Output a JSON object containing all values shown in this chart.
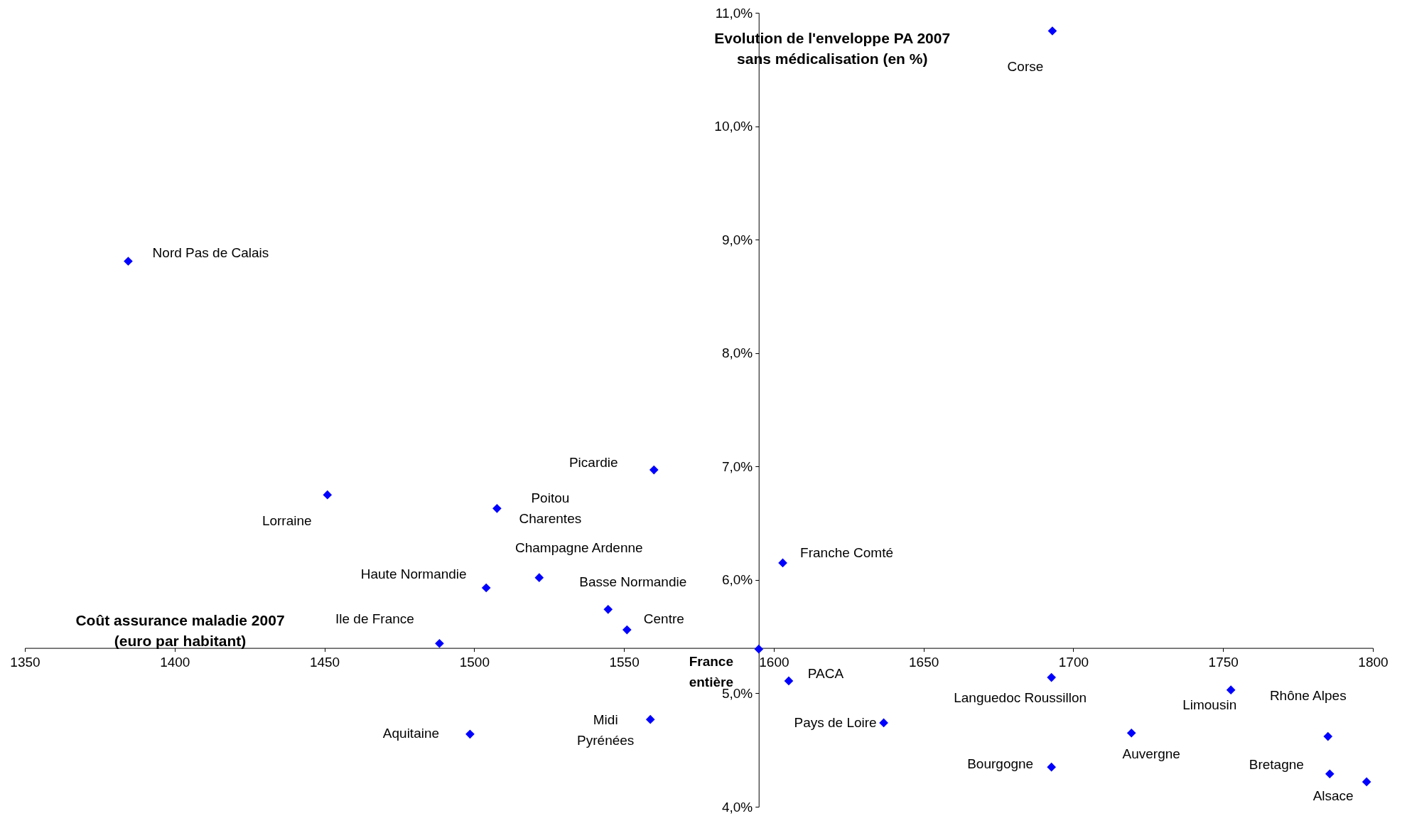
{
  "chart_data": {
    "type": "scatter",
    "xlabel": "Coût assurance maladie 2007\n(euro par habitant)",
    "ylabel": "Evolution de l'enveloppe PA 2007\nsans médicalisation (en %)",
    "x": [
      1693,
      1384.5,
      1451,
      1560,
      1507.6,
      1521.7,
      1504,
      1544.7,
      1551,
      1488.4,
      1595,
      1603,
      1605,
      1498.6,
      1558.8,
      1636.7,
      1692.7,
      1692.7,
      1719.4,
      1752.6,
      1785,
      1785.6,
      1797.9
    ],
    "series": [
      {
        "color": "#0000ff",
        "values": [
          10.84,
          8.81,
          6.75,
          6.97,
          6.63,
          6.02,
          5.93,
          5.74,
          5.56,
          5.44,
          5.39,
          6.15,
          5.11,
          4.64,
          4.77,
          4.74,
          5.14,
          4.35,
          4.65,
          5.03,
          4.62,
          4.29,
          4.22
        ]
      }
    ],
    "annotations": [
      {
        "text": "Corse",
        "x": 1693,
        "y": 10.84
      },
      {
        "text": "Nord Pas de Calais",
        "x": 1384.5,
        "y": 8.81
      },
      {
        "text": "Lorraine",
        "x": 1451,
        "y": 6.75
      },
      {
        "text": "Picardie",
        "x": 1560,
        "y": 6.97
      },
      {
        "text": "Poitou Charentes",
        "x": 1507.6,
        "y": 6.63
      },
      {
        "text": "Champagne Ardenne",
        "x": 1521.7,
        "y": 6.02
      },
      {
        "text": "Haute Normandie",
        "x": 1504,
        "y": 5.93
      },
      {
        "text": "Basse Normandie",
        "x": 1544.7,
        "y": 5.74
      },
      {
        "text": "Centre",
        "x": 1551,
        "y": 5.56
      },
      {
        "text": "Ile de France",
        "x": 1488.4,
        "y": 5.44
      },
      {
        "text": "France entière",
        "x": 1595,
        "y": 5.39
      },
      {
        "text": "Franche Comté",
        "x": 1603,
        "y": 6.15
      },
      {
        "text": "PACA",
        "x": 1605,
        "y": 5.11
      },
      {
        "text": "Aquitaine",
        "x": 1498.6,
        "y": 4.64
      },
      {
        "text": "Midi Pyrénées",
        "x": 1558.8,
        "y": 4.77
      },
      {
        "text": "Pays de Loire",
        "x": 1636.7,
        "y": 4.74
      },
      {
        "text": "Languedoc Roussillon",
        "x": 1692.7,
        "y": 5.14
      },
      {
        "text": "Bourgogne",
        "x": 1692.7,
        "y": 4.35
      },
      {
        "text": "Auvergne",
        "x": 1719.4,
        "y": 4.65
      },
      {
        "text": "Limousin",
        "x": 1752.6,
        "y": 5.03
      },
      {
        "text": "Rhône Alpes",
        "x": 1785,
        "y": 4.62
      },
      {
        "text": "Bretagne",
        "x": 1785.6,
        "y": 4.29
      },
      {
        "text": "Alsace",
        "x": 1797.9,
        "y": 4.22
      }
    ],
    "xlim": [
      1350,
      1800
    ],
    "xticks": [
      1350,
      1400,
      1450,
      1500,
      1550,
      1600,
      1650,
      1700,
      1750,
      1800
    ],
    "ylim": [
      4,
      11
    ],
    "yticks": [
      {
        "value": 4,
        "label": "4,0%"
      },
      {
        "value": 5,
        "label": "5,0%"
      },
      {
        "value": 6,
        "label": "6,0%"
      },
      {
        "value": 7,
        "label": "7,0%"
      },
      {
        "value": 8,
        "label": "8,0%"
      },
      {
        "value": 9,
        "label": "9,0%"
      },
      {
        "value": 10,
        "label": "10,0%"
      },
      {
        "value": 11,
        "label": "11,0%"
      }
    ],
    "marker": "diamond",
    "grid": false
  }
}
